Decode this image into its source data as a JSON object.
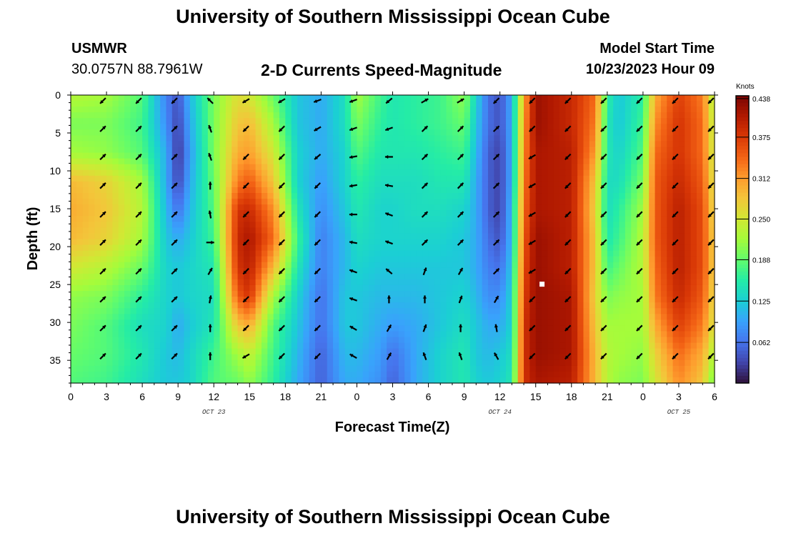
{
  "header": {
    "title": "University of Southern Mississippi Ocean Cube",
    "station_id": "USMWR",
    "station_coords": "30.0757N  88.7961W",
    "subtitle": "2-D Currents Speed-Magnitude",
    "model_label": "Model Start Time",
    "model_time": "10/23/2023 Hour 09",
    "footer_title": "University of Southern Mississippi Ocean Cube"
  },
  "chart_data": {
    "type": "heatmap",
    "title": "2-D Currents Speed-Magnitude",
    "xlabel": "Forecast Time(Z)",
    "ylabel": "Depth (ft)",
    "x_range_hours": [
      0,
      54
    ],
    "y_range_ft": [
      0,
      38
    ],
    "x_ticks": [
      {
        "hour": 0,
        "label": "0"
      },
      {
        "hour": 3,
        "label": "3"
      },
      {
        "hour": 6,
        "label": "6"
      },
      {
        "hour": 9,
        "label": "9"
      },
      {
        "hour": 12,
        "label": "12"
      },
      {
        "hour": 15,
        "label": "15"
      },
      {
        "hour": 18,
        "label": "18"
      },
      {
        "hour": 21,
        "label": "21"
      },
      {
        "hour": 24,
        "label": "0"
      },
      {
        "hour": 27,
        "label": "3"
      },
      {
        "hour": 30,
        "label": "6"
      },
      {
        "hour": 33,
        "label": "9"
      },
      {
        "hour": 36,
        "label": "12"
      },
      {
        "hour": 39,
        "label": "15"
      },
      {
        "hour": 42,
        "label": "18"
      },
      {
        "hour": 45,
        "label": "21"
      },
      {
        "hour": 48,
        "label": "0"
      },
      {
        "hour": 51,
        "label": "3"
      },
      {
        "hour": 54,
        "label": "6"
      }
    ],
    "y_ticks": [
      {
        "depth": 0,
        "label": "0"
      },
      {
        "depth": 5,
        "label": "5"
      },
      {
        "depth": 10,
        "label": "10"
      },
      {
        "depth": 15,
        "label": "15"
      },
      {
        "depth": 20,
        "label": "20"
      },
      {
        "depth": 25,
        "label": "25"
      },
      {
        "depth": 30,
        "label": "30"
      },
      {
        "depth": 35,
        "label": "35"
      }
    ],
    "date_labels": [
      {
        "hour": 12,
        "label": "OCT 23"
      },
      {
        "hour": 36,
        "label": "OCT 24"
      },
      {
        "hour": 51,
        "label": "OCT 25"
      }
    ],
    "colorbar": {
      "unit": "Knots",
      "min": 0.0,
      "max": 0.438,
      "ticks": [
        "0.438",
        "0.375",
        "0.312",
        "0.250",
        "0.188",
        "0.125",
        "0.062"
      ],
      "tick_values": [
        0.438,
        0.375,
        0.312,
        0.25,
        0.188,
        0.125,
        0.062
      ],
      "colors": [
        "#30123b",
        "#4145ab",
        "#4675ed",
        "#39a2fc",
        "#1bcfd4",
        "#24eca6",
        "#61fc6c",
        "#a4fc3b",
        "#d1e834",
        "#f3c63a",
        "#fe9b2d",
        "#f36315",
        "#d93806",
        "#b11901",
        "#7a0402"
      ]
    },
    "arrow_depths_ft": [
      0,
      3.7,
      7.4,
      11.2,
      15,
      18.7,
      22.5,
      26.2,
      30,
      33.7
    ],
    "arrow_hours": [
      0,
      3,
      6,
      9,
      12,
      15,
      18,
      21,
      24,
      27,
      30,
      33,
      36,
      39,
      42,
      45,
      48,
      51
    ],
    "speed_profiles": [
      {
        "hour": 0,
        "speed": [
          0.23,
          0.2,
          0.22,
          0.29,
          0.3,
          0.29,
          0.25,
          0.21,
          0.2,
          0.19,
          0.18
        ]
      },
      {
        "hour": 3,
        "speed": [
          0.22,
          0.2,
          0.21,
          0.27,
          0.28,
          0.27,
          0.23,
          0.2,
          0.18,
          0.18,
          0.17
        ]
      },
      {
        "hour": 6,
        "speed": [
          0.18,
          0.17,
          0.18,
          0.22,
          0.23,
          0.22,
          0.19,
          0.16,
          0.14,
          0.15,
          0.14
        ]
      },
      {
        "hour": 8,
        "speed": [
          0.07,
          0.08,
          0.1,
          0.1,
          0.11,
          0.12,
          0.13,
          0.13,
          0.13,
          0.12,
          0.12
        ]
      },
      {
        "hour": 9,
        "speed": [
          0.04,
          0.03,
          0.02,
          0.03,
          0.06,
          0.1,
          0.12,
          0.12,
          0.1,
          0.11,
          0.12
        ]
      },
      {
        "hour": 10,
        "speed": [
          0.11,
          0.1,
          0.09,
          0.1,
          0.11,
          0.12,
          0.13,
          0.13,
          0.12,
          0.13,
          0.13
        ]
      },
      {
        "hour": 12,
        "speed": [
          0.2,
          0.2,
          0.2,
          0.19,
          0.18,
          0.17,
          0.15,
          0.14,
          0.15,
          0.17,
          0.18
        ]
      },
      {
        "hour": 14,
        "speed": [
          0.26,
          0.28,
          0.3,
          0.33,
          0.38,
          0.39,
          0.38,
          0.35,
          0.28,
          0.22,
          0.19
        ]
      },
      {
        "hour": 15,
        "speed": [
          0.25,
          0.29,
          0.31,
          0.35,
          0.39,
          0.41,
          0.4,
          0.38,
          0.3,
          0.24,
          0.21
        ]
      },
      {
        "hour": 17,
        "speed": [
          0.19,
          0.22,
          0.25,
          0.28,
          0.32,
          0.34,
          0.29,
          0.22,
          0.18,
          0.17,
          0.16
        ]
      },
      {
        "hour": 19,
        "speed": [
          0.12,
          0.12,
          0.13,
          0.13,
          0.15,
          0.17,
          0.15,
          0.13,
          0.12,
          0.11,
          0.1
        ]
      },
      {
        "hour": 21,
        "speed": [
          0.1,
          0.1,
          0.1,
          0.09,
          0.08,
          0.07,
          0.07,
          0.06,
          0.06,
          0.05,
          0.05
        ]
      },
      {
        "hour": 23,
        "speed": [
          0.14,
          0.14,
          0.13,
          0.13,
          0.12,
          0.11,
          0.11,
          0.12,
          0.12,
          0.11,
          0.1
        ]
      },
      {
        "hour": 24,
        "speed": [
          0.22,
          0.2,
          0.18,
          0.16,
          0.15,
          0.14,
          0.13,
          0.12,
          0.12,
          0.11,
          0.1
        ]
      },
      {
        "hour": 26,
        "speed": [
          0.17,
          0.16,
          0.15,
          0.14,
          0.13,
          0.13,
          0.12,
          0.11,
          0.1,
          0.09,
          0.08
        ]
      },
      {
        "hour": 27,
        "speed": [
          0.15,
          0.15,
          0.15,
          0.14,
          0.13,
          0.13,
          0.12,
          0.11,
          0.09,
          0.06,
          0.05
        ]
      },
      {
        "hour": 29,
        "speed": [
          0.16,
          0.16,
          0.15,
          0.14,
          0.14,
          0.13,
          0.12,
          0.11,
          0.1,
          0.1,
          0.1
        ]
      },
      {
        "hour": 31,
        "speed": [
          0.17,
          0.17,
          0.16,
          0.15,
          0.14,
          0.13,
          0.12,
          0.12,
          0.12,
          0.13,
          0.13
        ]
      },
      {
        "hour": 33,
        "speed": [
          0.21,
          0.19,
          0.17,
          0.15,
          0.13,
          0.12,
          0.12,
          0.13,
          0.14,
          0.15,
          0.15
        ]
      },
      {
        "hour": 34,
        "speed": [
          0.13,
          0.12,
          0.11,
          0.1,
          0.1,
          0.1,
          0.1,
          0.11,
          0.12,
          0.12,
          0.13
        ]
      },
      {
        "hour": 35,
        "speed": [
          0.06,
          0.06,
          0.05,
          0.05,
          0.05,
          0.06,
          0.07,
          0.08,
          0.1,
          0.11,
          0.12
        ]
      },
      {
        "hour": 36,
        "speed": [
          0.04,
          0.04,
          0.03,
          0.03,
          0.03,
          0.04,
          0.06,
          0.08,
          0.1,
          0.12,
          0.13
        ]
      },
      {
        "hour": 37,
        "speed": [
          0.1,
          0.1,
          0.1,
          0.1,
          0.11,
          0.11,
          0.12,
          0.13,
          0.13,
          0.14,
          0.15
        ]
      },
      {
        "hour": 38,
        "speed": [
          0.3,
          0.31,
          0.32,
          0.33,
          0.34,
          0.35,
          0.36,
          0.37,
          0.38,
          0.38,
          0.38
        ]
      },
      {
        "hour": 39,
        "speed": [
          0.42,
          0.42,
          0.41,
          0.41,
          0.41,
          0.42,
          0.42,
          0.42,
          0.42,
          0.42,
          0.41
        ]
      },
      {
        "hour": 42,
        "speed": [
          0.39,
          0.39,
          0.4,
          0.4,
          0.4,
          0.4,
          0.4,
          0.41,
          0.41,
          0.41,
          0.4
        ]
      },
      {
        "hour": 44,
        "speed": [
          0.34,
          0.33,
          0.31,
          0.28,
          0.27,
          0.28,
          0.28,
          0.27,
          0.28,
          0.29,
          0.29
        ]
      },
      {
        "hour": 45,
        "speed": [
          0.16,
          0.15,
          0.15,
          0.14,
          0.14,
          0.15,
          0.17,
          0.2,
          0.22,
          0.23,
          0.23
        ]
      },
      {
        "hour": 46,
        "speed": [
          0.12,
          0.12,
          0.13,
          0.14,
          0.16,
          0.17,
          0.19,
          0.21,
          0.22,
          0.22,
          0.21
        ]
      },
      {
        "hour": 48,
        "speed": [
          0.16,
          0.17,
          0.18,
          0.2,
          0.22,
          0.23,
          0.23,
          0.22,
          0.22,
          0.21,
          0.2
        ]
      },
      {
        "hour": 49,
        "speed": [
          0.3,
          0.32,
          0.34,
          0.35,
          0.35,
          0.35,
          0.34,
          0.33,
          0.3,
          0.27,
          0.25
        ]
      },
      {
        "hour": 51,
        "speed": [
          0.37,
          0.38,
          0.38,
          0.39,
          0.4,
          0.4,
          0.4,
          0.39,
          0.37,
          0.34,
          0.32
        ]
      },
      {
        "hour": 53,
        "speed": [
          0.33,
          0.34,
          0.34,
          0.35,
          0.36,
          0.36,
          0.36,
          0.35,
          0.33,
          0.3,
          0.28
        ]
      },
      {
        "hour": 54,
        "speed": [
          0.22,
          0.23,
          0.24,
          0.25,
          0.26,
          0.27,
          0.27,
          0.26,
          0.25,
          0.22,
          0.19
        ]
      }
    ],
    "profile_depths_ft": [
      0,
      3.8,
      7.6,
      11.4,
      15.2,
      19,
      22.8,
      26.6,
      30.4,
      34.2,
      38
    ],
    "arrow_directions_deg": [
      {
        "hour": 0,
        "dirs": [
          135,
          315,
          315,
          315,
          315,
          315,
          315,
          315,
          315,
          315
        ]
      },
      {
        "hour": 3,
        "dirs": [
          135,
          315,
          315,
          315,
          315,
          315,
          315,
          315,
          315,
          315
        ]
      },
      {
        "hour": 6,
        "dirs": [
          135,
          315,
          315,
          315,
          315,
          315,
          315,
          315,
          315,
          315
        ]
      },
      {
        "hour": 9,
        "dirs": [
          225,
          250,
          250,
          270,
          260,
          0,
          300,
          280,
          270,
          270
        ]
      },
      {
        "hour": 12,
        "dirs": [
          150,
          135,
          135,
          135,
          135,
          135,
          135,
          135,
          135,
          150
        ]
      },
      {
        "hour": 15,
        "dirs": [
          150,
          135,
          135,
          135,
          135,
          135,
          135,
          135,
          135,
          135
        ]
      },
      {
        "hour": 18,
        "dirs": [
          160,
          150,
          140,
          135,
          135,
          135,
          135,
          135,
          135,
          135
        ]
      },
      {
        "hour": 21,
        "dirs": [
          160,
          160,
          170,
          170,
          180,
          190,
          200,
          200,
          210,
          210
        ]
      },
      {
        "hour": 24,
        "dirs": [
          140,
          160,
          180,
          190,
          200,
          200,
          220,
          270,
          300,
          300
        ]
      },
      {
        "hour": 27,
        "dirs": [
          330,
          315,
          315,
          315,
          315,
          315,
          290,
          270,
          290,
          250
        ]
      },
      {
        "hour": 30,
        "dirs": [
          330,
          315,
          315,
          315,
          315,
          315,
          300,
          290,
          270,
          250
        ]
      },
      {
        "hour": 33,
        "dirs": [
          135,
          315,
          315,
          315,
          315,
          315,
          315,
          300,
          260,
          240
        ]
      },
      {
        "hour": 36,
        "dirs": [
          135,
          135,
          150,
          150,
          150,
          150,
          150,
          135,
          135,
          135
        ]
      },
      {
        "hour": 39,
        "dirs": [
          135,
          135,
          135,
          135,
          135,
          135,
          135,
          135,
          135,
          135
        ]
      },
      {
        "hour": 42,
        "dirs": [
          135,
          135,
          135,
          135,
          135,
          135,
          135,
          135,
          135,
          135
        ]
      },
      {
        "hour": 45,
        "dirs": [
          135,
          135,
          135,
          135,
          135,
          135,
          135,
          135,
          135,
          135
        ]
      },
      {
        "hour": 48,
        "dirs": [
          135,
          135,
          135,
          135,
          135,
          135,
          135,
          135,
          135,
          135
        ]
      },
      {
        "hour": 51,
        "dirs": [
          135,
          135,
          135,
          135,
          135,
          135,
          135,
          135,
          135,
          135
        ]
      }
    ],
    "marker": {
      "hour": 39.5,
      "depth": 25
    }
  }
}
